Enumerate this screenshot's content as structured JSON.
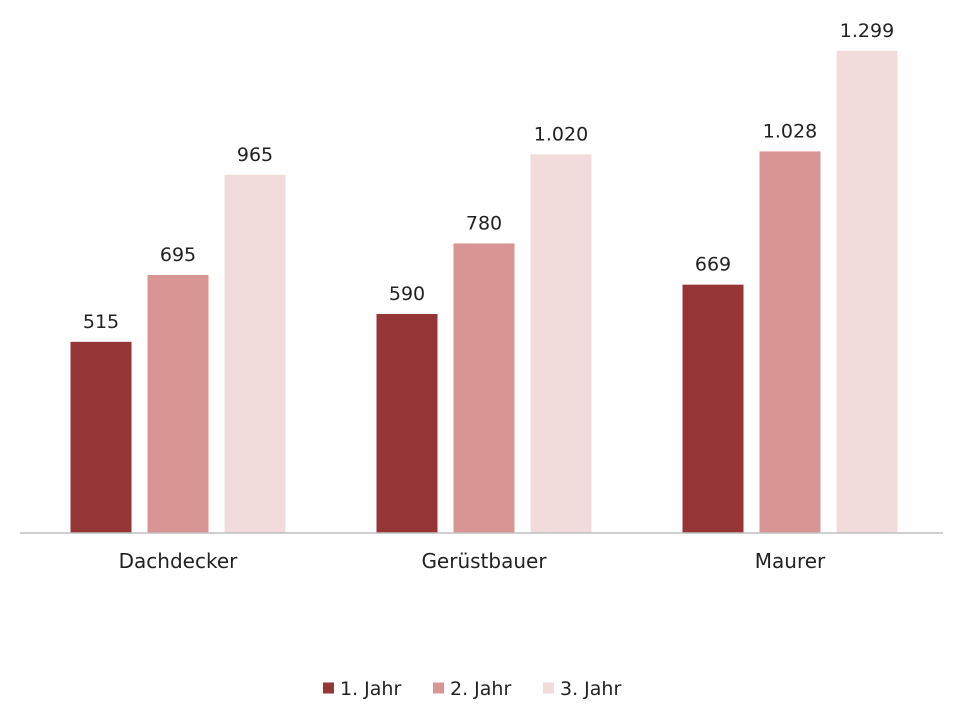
{
  "chart_data": {
    "type": "bar",
    "title": "",
    "xlabel": "",
    "ylabel": "",
    "categories": [
      "Dachdecker",
      "Gerüstbauer",
      "Maurer"
    ],
    "series": [
      {
        "name": "1. Jahr",
        "values": [
          515,
          590,
          669
        ],
        "labels": [
          "515",
          "590",
          "669"
        ],
        "color": "#963535"
      },
      {
        "name": "2. Jahr",
        "values": [
          695,
          780,
          1028
        ],
        "labels": [
          "695",
          "780",
          "1.028"
        ],
        "color": "#d99594"
      },
      {
        "name": "3. Jahr",
        "values": [
          965,
          1020,
          1299
        ],
        "labels": [
          "965",
          "1.020",
          "1.299"
        ],
        "color": "#f2dcdb"
      }
    ],
    "ylim": [
      0,
      1320
    ],
    "grid": false,
    "legend": "bottom-center"
  }
}
